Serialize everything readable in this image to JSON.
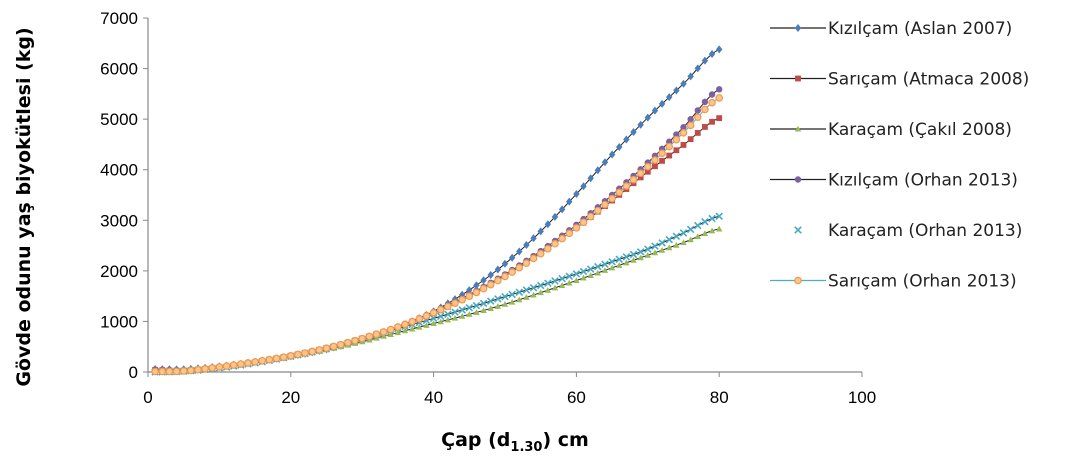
{
  "chart_data": {
    "type": "line",
    "title": "",
    "xlabel": {
      "main": "Çap (d",
      "sub": "1.30",
      "tail": ") cm"
    },
    "ylabel": "Gövde odunu yaş biyokütlesi (kg)",
    "xlim": [
      0,
      100
    ],
    "ylim": [
      0,
      7000
    ],
    "x_ticks": [
      "0",
      "20",
      "40",
      "60",
      "80",
      "100"
    ],
    "y_ticks": [
      "0",
      "1000",
      "2000",
      "3000",
      "4000",
      "5000",
      "6000",
      "7000"
    ],
    "grid": false,
    "legend_position": "right",
    "series": [
      {
        "name": "Kızılçam (Aslan 2007)",
        "color": "#4A7EBB",
        "marker": "diamond",
        "x": [
          1,
          5,
          10,
          15,
          20,
          25,
          30,
          35,
          40,
          45,
          50,
          55,
          60,
          65,
          70,
          75,
          80
        ],
        "y": [
          60,
          55,
          110,
          200,
          310,
          450,
          640,
          880,
          1200,
          1620,
          2140,
          2780,
          3520,
          4300,
          5030,
          5700,
          6380
        ]
      },
      {
        "name": "Sarıçam (Atmaca 2008)",
        "color": "#BE4B48",
        "marker": "square",
        "x": [
          1,
          5,
          10,
          15,
          20,
          25,
          30,
          35,
          40,
          45,
          50,
          55,
          60,
          65,
          70,
          75,
          80
        ],
        "y": [
          40,
          30,
          90,
          190,
          310,
          460,
          650,
          880,
          1160,
          1500,
          1900,
          2350,
          2850,
          3390,
          3960,
          4490,
          5020
        ]
      },
      {
        "name": "Karaçam (Çakıl 2008)",
        "color": "#98B954",
        "marker": "triangle",
        "x": [
          1,
          5,
          10,
          15,
          20,
          25,
          30,
          35,
          40,
          45,
          50,
          55,
          60,
          65,
          70,
          75,
          80
        ],
        "y": [
          10,
          20,
          80,
          180,
          300,
          440,
          600,
          780,
          960,
          1140,
          1340,
          1570,
          1810,
          2060,
          2310,
          2560,
          2830
        ]
      },
      {
        "name": "Kızılçam (Orhan 2013)",
        "color": "#7D60A0",
        "marker": "circle",
        "x": [
          1,
          5,
          10,
          15,
          20,
          25,
          30,
          35,
          40,
          45,
          50,
          55,
          60,
          65,
          70,
          75,
          80
        ],
        "y": [
          20,
          25,
          100,
          200,
          320,
          470,
          660,
          900,
          1190,
          1530,
          1930,
          2390,
          2910,
          3500,
          4140,
          4840,
          5590
        ]
      },
      {
        "name": "Karaçam (Orhan 2013)",
        "color": "#46AAC5",
        "marker": "x",
        "x": [
          1,
          5,
          10,
          15,
          20,
          25,
          30,
          35,
          40,
          45,
          50,
          55,
          60,
          65,
          70,
          75,
          80
        ],
        "y": [
          0,
          15,
          80,
          180,
          310,
          460,
          650,
          860,
          1060,
          1270,
          1490,
          1710,
          1940,
          2180,
          2430,
          2750,
          3080
        ]
      },
      {
        "name": "Sarıçam (Orhan 2013)",
        "color": "#F79646",
        "marker": "circle-open",
        "x": [
          1,
          5,
          10,
          15,
          20,
          25,
          30,
          35,
          40,
          45,
          50,
          55,
          60,
          65,
          70,
          75,
          80
        ],
        "y": [
          10,
          20,
          100,
          200,
          320,
          470,
          660,
          890,
          1170,
          1500,
          1890,
          2340,
          2850,
          3430,
          4060,
          4730,
          5420
        ]
      }
    ]
  }
}
